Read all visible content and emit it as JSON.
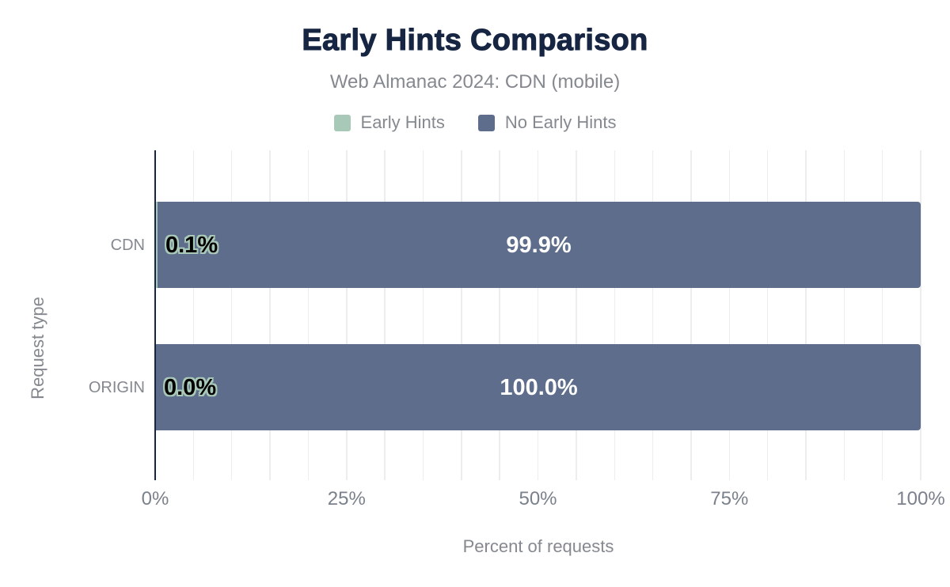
{
  "card": {
    "title": "Early Hints Comparison",
    "subtitle": "Web Almanac 2024: CDN (mobile)"
  },
  "chart_data": {
    "type": "bar",
    "orientation": "horizontal",
    "stacked": true,
    "title": "Early Hints Comparison",
    "subtitle": "Web Almanac 2024: CDN (mobile)",
    "categories": [
      "CDN",
      "ORIGIN"
    ],
    "series": [
      {
        "name": "Early Hints",
        "color": "#a9c9b8",
        "values": [
          0.1,
          0.0
        ],
        "labels": [
          "0.1%",
          "0.0%"
        ]
      },
      {
        "name": "No Early Hints",
        "color": "#5f6d8c",
        "values": [
          99.9,
          100.0
        ],
        "labels": [
          "99.9%",
          "100.0%"
        ]
      }
    ],
    "xlabel": "Percent of requests",
    "ylabel": "Request type",
    "xlim": [
      0,
      100
    ],
    "x_ticks": [
      {
        "value": 0,
        "label": "0%"
      },
      {
        "value": 25,
        "label": "25%"
      },
      {
        "value": 50,
        "label": "50%"
      },
      {
        "value": 75,
        "label": "75%"
      },
      {
        "value": 100,
        "label": "100%"
      }
    ],
    "x_minor_gridline_step": 5,
    "grid": true,
    "legend_position": "top",
    "value_label_colors": {
      "inside_start": "#000000",
      "center": "#ffffff"
    },
    "axis_color": "#162542",
    "gridline_color": "#ededed"
  }
}
